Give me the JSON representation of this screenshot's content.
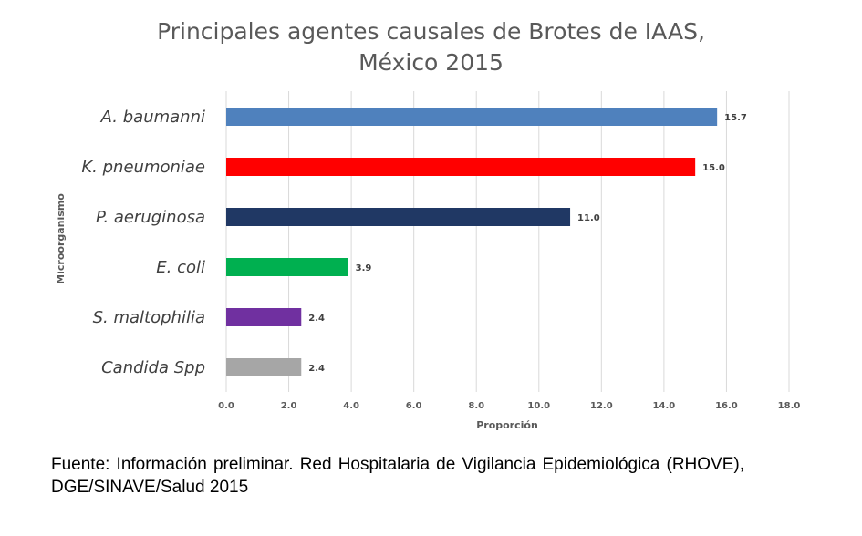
{
  "title": {
    "line1": "Principales agentes causales de Brotes de  IAAS,",
    "line2": "México 2015"
  },
  "chart_data": {
    "type": "bar",
    "orientation": "horizontal",
    "categories": [
      "A. baumanni",
      "K. pneumoniae",
      "P. aeruginosa",
      "E. coli",
      "S. maltophilia",
      "Candida Spp"
    ],
    "values": [
      15.7,
      15.0,
      11.0,
      3.9,
      2.4,
      2.4
    ],
    "value_labels": [
      "15.7",
      "15.0",
      "11.0",
      "3.9",
      "2.4",
      "2.4"
    ],
    "colors": [
      "#4f81bd",
      "#ff0000",
      "#203864",
      "#00b050",
      "#7030a0",
      "#a6a6a6"
    ],
    "xlabel": "Proporción",
    "ylabel": "Microorganismo",
    "xlim": [
      0,
      18
    ],
    "xticks": [
      "0.0",
      "2.0",
      "4.0",
      "6.0",
      "8.0",
      "10.0",
      "12.0",
      "14.0",
      "16.0",
      "18.0"
    ],
    "grid": "vertical"
  },
  "footnote": "Fuente: Información preliminar. Red Hospitalaria de Vigilancia Epidemiológica (RHOVE), DGE/SINAVE/Salud 2015"
}
